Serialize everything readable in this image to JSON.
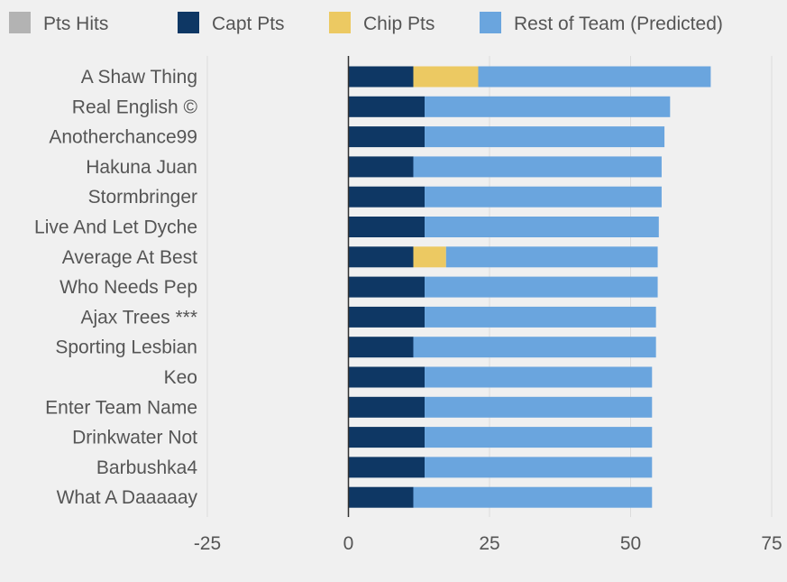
{
  "colors": {
    "background": "#f0f0f0",
    "pts_hits": "#b3b3b3",
    "capt_pts": "#0e3764",
    "chip_pts": "#ecc962",
    "rest_of_team": "#6aa5de",
    "gridline": "#dcdcdc",
    "axis": "#333333"
  },
  "chart_data": {
    "type": "bar",
    "orientation": "horizontal",
    "stacked": true,
    "legend_position": "top",
    "grid": true,
    "xlim": [
      -25,
      75
    ],
    "xticks": [
      -25,
      0,
      25,
      50,
      75
    ],
    "xtick_labels": [
      "-25",
      "0",
      "25",
      "50",
      "75"
    ],
    "categories": [
      "A Shaw Thing",
      "Real English ©",
      "Anotherchance99",
      "Hakuna Juan",
      "Stormbringer",
      "Live And Let Dyche",
      "Average At Best",
      "Who Needs Pep",
      "Ajax Trees ***",
      "Sporting Lesbian",
      "Keo",
      "Enter Team Name",
      "Drinkwater Not",
      "Barbushka4",
      "What A Daaaaay"
    ],
    "series": [
      {
        "name": "Pts Hits",
        "color_key": "pts_hits",
        "values": [
          0,
          0,
          0,
          0,
          0,
          0,
          0,
          0,
          0,
          0,
          0,
          0,
          0,
          0,
          0
        ]
      },
      {
        "name": "Capt Pts",
        "color_key": "capt_pts",
        "values": [
          11.5,
          13.5,
          13.5,
          11.5,
          13.5,
          13.5,
          11.5,
          13.5,
          13.5,
          11.5,
          13.5,
          13.5,
          13.5,
          13.5,
          11.5
        ]
      },
      {
        "name": "Chip Pts",
        "color_key": "chip_pts",
        "values": [
          11.5,
          0,
          0,
          0,
          0,
          0,
          5.8,
          0,
          0,
          0,
          0,
          0,
          0,
          0,
          0
        ]
      },
      {
        "name": "Rest of Team (Predicted)",
        "color_key": "rest_of_team",
        "values": [
          41.2,
          43.5,
          42.5,
          44.0,
          42.0,
          41.5,
          37.5,
          41.3,
          41.0,
          43.0,
          40.3,
          40.3,
          40.3,
          40.3,
          42.3
        ]
      }
    ]
  }
}
